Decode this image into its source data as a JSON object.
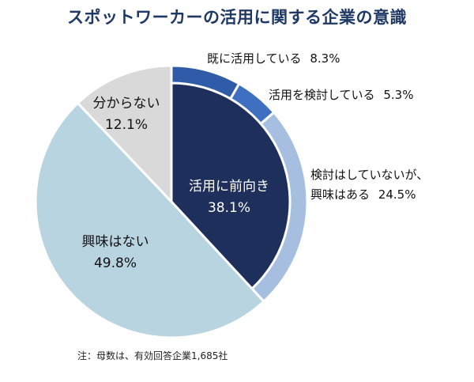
{
  "title": "スポットワーカーの活用に関する企業の意識",
  "note": "注：母数は、有効回答企業1,685社",
  "colors": {
    "title": "#1f3864",
    "inner_positive": "#1f2f5c",
    "outer_already": "#2f5ba8",
    "outer_considering": "#3f6fc0",
    "outer_interested": "#a6bee0",
    "no_interest": "#b8d4e0",
    "unknown": "#d9d9d9"
  },
  "chart_data": {
    "type": "pie",
    "title": "スポットワーカーの活用に関する企業の意識",
    "slices": [
      {
        "key": "positive",
        "label": "活用に前向き",
        "value": 38.1,
        "value_text": "38.1%"
      },
      {
        "key": "no_interest",
        "label": "興味はない",
        "value": 49.8,
        "value_text": "49.8%"
      },
      {
        "key": "unknown",
        "label": "分からない",
        "value": 12.1,
        "value_text": "12.1%"
      }
    ],
    "breakdown_of_positive": [
      {
        "key": "already",
        "label": "既に活用している",
        "value": 8.3,
        "value_text": "8.3%"
      },
      {
        "key": "considering",
        "label": "活用を検討している",
        "value": 5.3,
        "value_text": "5.3%"
      },
      {
        "key": "interested",
        "label_line1": "検討はしていないが、",
        "label_line2": "興味はある",
        "value": 24.5,
        "value_text": "24.5%"
      }
    ]
  }
}
